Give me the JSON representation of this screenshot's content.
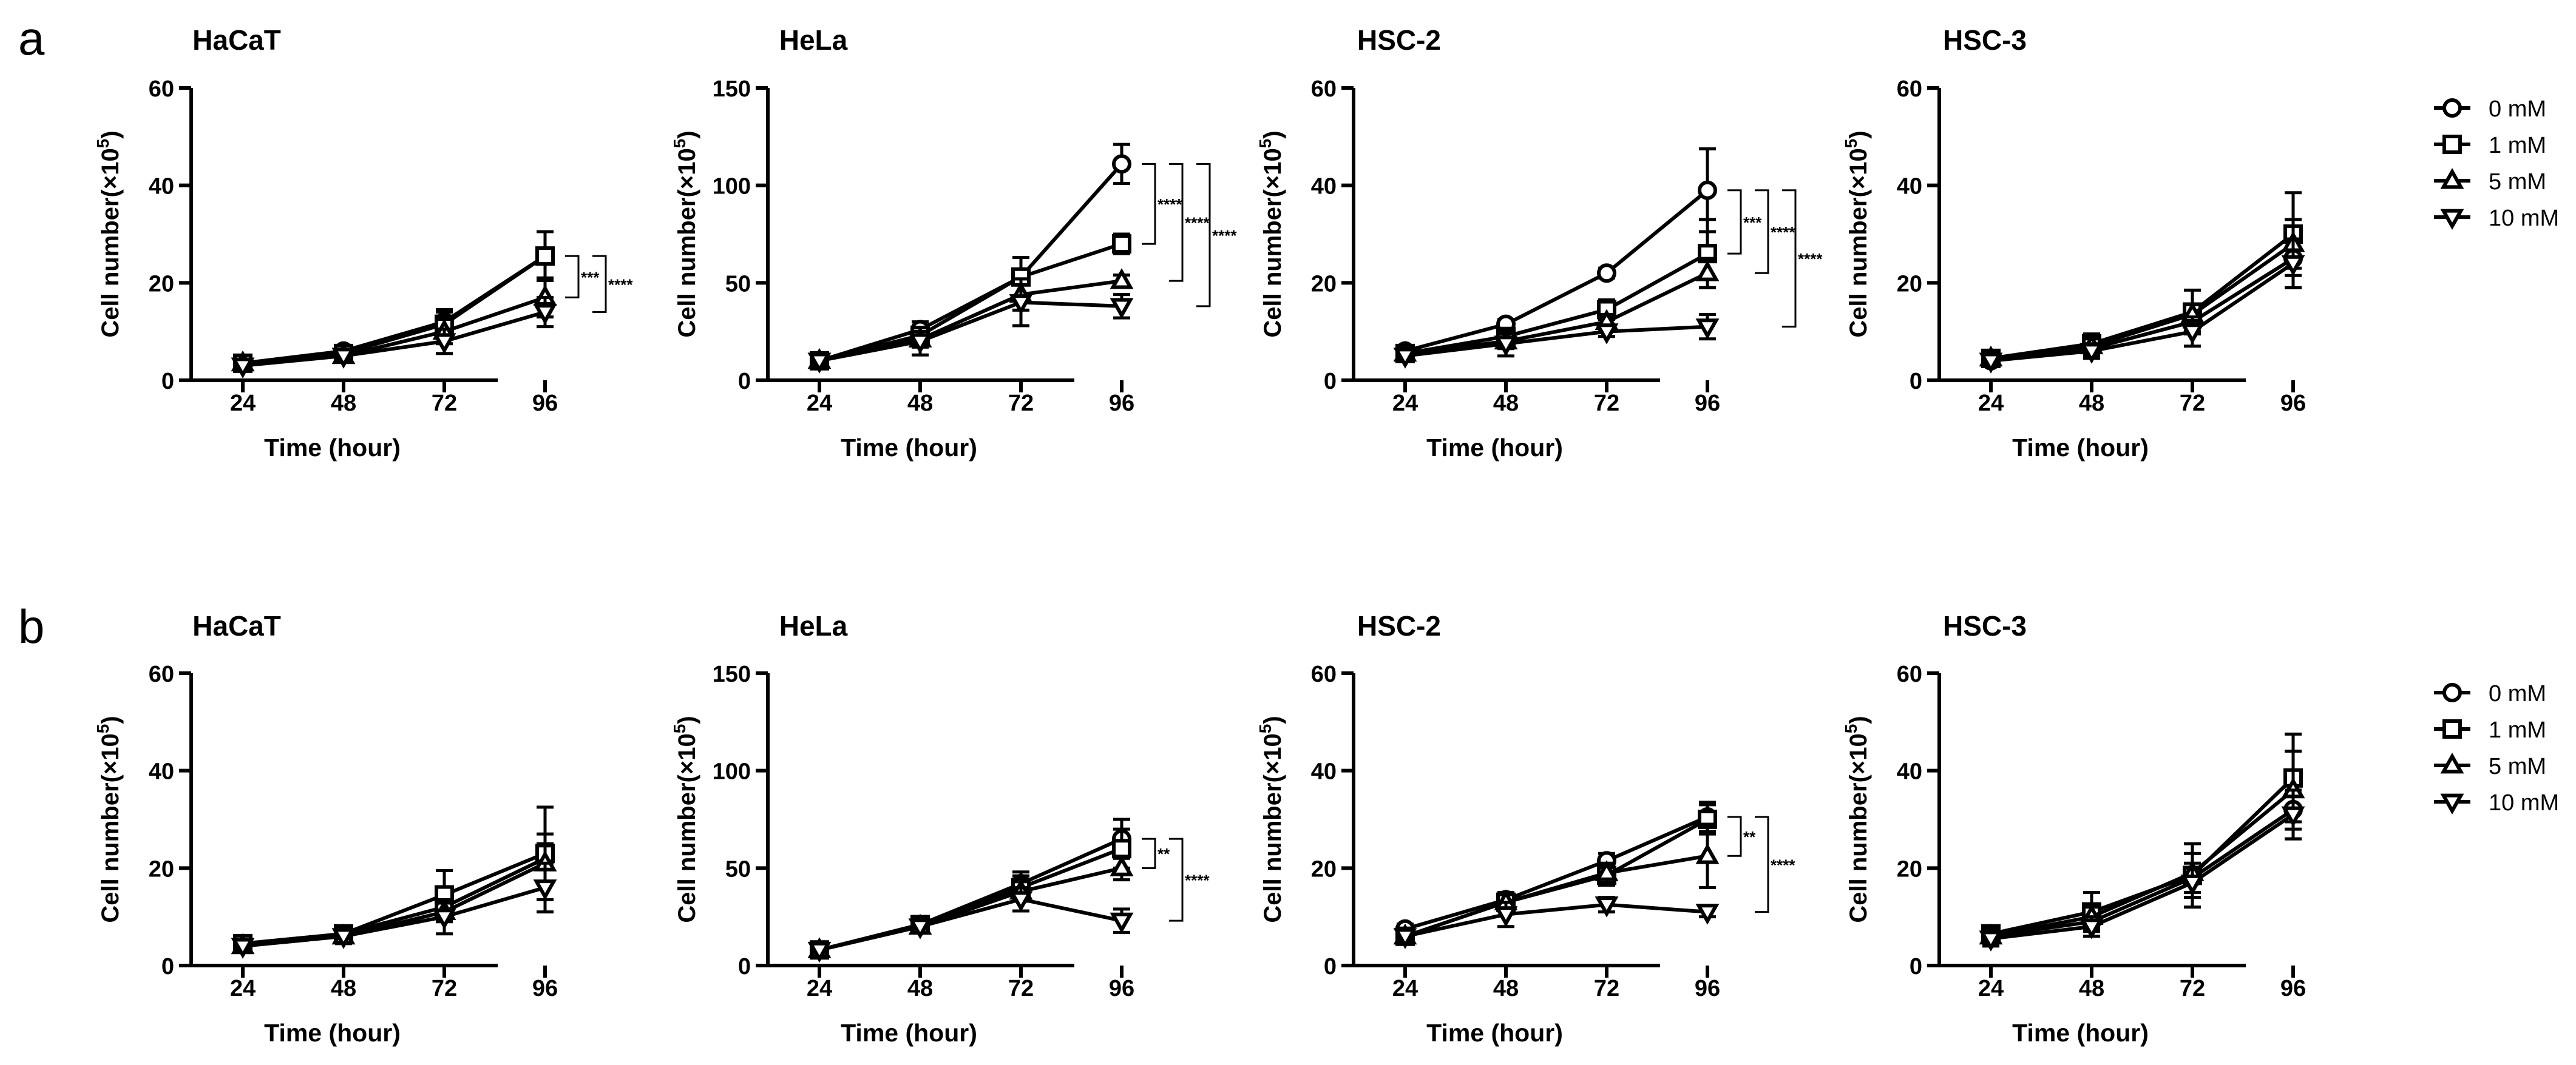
{
  "figure": {
    "legend": {
      "a": [
        "0 mM",
        "1 mM",
        "5 mM",
        "10 mM"
      ],
      "b": [
        "0 mM",
        "1 mM",
        "5 mM",
        "10 mM"
      ]
    },
    "panel_labels": [
      "a",
      "b"
    ],
    "styles": {
      "line_color": "#000000",
      "background": "#ffffff"
    }
  },
  "chart_data": [
    {
      "panel": "a",
      "type": "line",
      "title": "HaCaT",
      "xlabel": "Time (hour)",
      "ylabel": "Cell number(×10",
      "ylabel_superscript": "5",
      "ylabel_close": ")",
      "categories": [
        "24",
        "48",
        "72",
        "96"
      ],
      "ylim": [
        0,
        60
      ],
      "yticks": [
        "0",
        "20",
        "40",
        "60"
      ],
      "series": [
        {
          "name": "0 mM",
          "marker": "circle",
          "values": [
            3.5,
            6,
            12,
            25.5
          ],
          "errors": [
            0.5,
            1,
            2.5,
            5
          ]
        },
        {
          "name": "1 mM",
          "marker": "square",
          "values": [
            3.5,
            5.5,
            11.5,
            25.5
          ],
          "errors": [
            0.5,
            1,
            2.5,
            5
          ]
        },
        {
          "name": "5 mM",
          "marker": "triangle-up",
          "values": [
            3.5,
            5,
            10,
            17
          ],
          "errors": [
            0.5,
            1,
            2.5,
            4
          ]
        },
        {
          "name": "10 mM",
          "marker": "triangle-down",
          "values": [
            3,
            5,
            8,
            14
          ],
          "errors": [
            0.5,
            1,
            2.5,
            3
          ]
        }
      ],
      "significance": [
        {
          "label": "***",
          "from": 25.5,
          "to": 17
        },
        {
          "label": "****",
          "from": 25.5,
          "to": 14
        }
      ]
    },
    {
      "panel": "a",
      "type": "line",
      "title": "HeLa",
      "xlabel": "Time (hour)",
      "ylabel": "Cell number(×10",
      "ylabel_superscript": "5",
      "ylabel_close": ")",
      "categories": [
        "24",
        "48",
        "72",
        "96"
      ],
      "ylim": [
        0,
        150
      ],
      "yticks": [
        "0",
        "50",
        "100",
        "150"
      ],
      "series": [
        {
          "name": "0 mM",
          "marker": "circle",
          "values": [
            10,
            26,
            53,
            111
          ],
          "errors": [
            2,
            4,
            10,
            10
          ]
        },
        {
          "name": "1 mM",
          "marker": "square",
          "values": [
            10,
            23,
            53,
            70
          ],
          "errors": [
            2,
            4,
            10,
            5
          ]
        },
        {
          "name": "5 mM",
          "marker": "triangle-up",
          "values": [
            10,
            21,
            44,
            51
          ],
          "errors": [
            2,
            4,
            8,
            3
          ]
        },
        {
          "name": "10 mM",
          "marker": "triangle-down",
          "values": [
            10,
            20,
            40,
            38
          ],
          "errors": [
            2,
            7,
            12,
            6
          ]
        }
      ],
      "significance": [
        {
          "label": "****",
          "from": 111,
          "to": 70
        },
        {
          "label": "****",
          "from": 111,
          "to": 51
        },
        {
          "label": "****",
          "from": 111,
          "to": 38
        }
      ]
    },
    {
      "panel": "a",
      "type": "line",
      "title": "HSC-2",
      "xlabel": "Time (hour)",
      "ylabel": "Cell number(×10",
      "ylabel_superscript": "5",
      "ylabel_close": ")",
      "categories": [
        "24",
        "48",
        "72",
        "96"
      ],
      "ylim": [
        0,
        60
      ],
      "yticks": [
        "0",
        "20",
        "40",
        "60"
      ],
      "series": [
        {
          "name": "0 mM",
          "marker": "circle",
          "values": [
            6,
            11.5,
            22,
            39
          ],
          "errors": [
            1,
            1,
            1,
            8.5
          ]
        },
        {
          "name": "1 mM",
          "marker": "square",
          "values": [
            5.5,
            9,
            14.5,
            26
          ],
          "errors": [
            1,
            1.5,
            2,
            7
          ]
        },
        {
          "name": "5 mM",
          "marker": "triangle-up",
          "values": [
            5.5,
            8,
            12,
            22
          ],
          "errors": [
            1,
            1.5,
            1.5,
            3
          ]
        },
        {
          "name": "10 mM",
          "marker": "triangle-down",
          "values": [
            5,
            7.5,
            10,
            11
          ],
          "errors": [
            1,
            2.5,
            1,
            2.5
          ]
        }
      ],
      "significance": [
        {
          "label": "***",
          "from": 39,
          "to": 26
        },
        {
          "label": "****",
          "from": 39,
          "to": 22
        },
        {
          "label": "****",
          "from": 39,
          "to": 11
        }
      ]
    },
    {
      "panel": "a",
      "type": "line",
      "title": "HSC-3",
      "xlabel": "Time (hour)",
      "ylabel": "Cell number(×10",
      "ylabel_superscript": "5",
      "ylabel_close": ")",
      "categories": [
        "24",
        "48",
        "72",
        "96"
      ],
      "ylim": [
        0,
        60
      ],
      "yticks": [
        "0",
        "20",
        "40",
        "60"
      ],
      "series": [
        {
          "name": "0 mM",
          "marker": "circle",
          "values": [
            4,
            6.5,
            12,
            25
          ],
          "errors": [
            1,
            1.5,
            2,
            6
          ]
        },
        {
          "name": "1 mM",
          "marker": "square",
          "values": [
            4.5,
            7.5,
            14,
            30
          ],
          "errors": [
            1,
            2,
            4.5,
            8.5
          ]
        },
        {
          "name": "5 mM",
          "marker": "triangle-up",
          "values": [
            4.5,
            7,
            13.5,
            28
          ],
          "errors": [
            1,
            1.5,
            2,
            5
          ]
        },
        {
          "name": "10 mM",
          "marker": "triangle-down",
          "values": [
            4,
            6,
            10,
            24
          ],
          "errors": [
            1,
            1.5,
            3,
            5
          ]
        }
      ],
      "significance": []
    },
    {
      "panel": "b",
      "type": "line",
      "title": "HaCaT",
      "xlabel": "Time (hour)",
      "ylabel": "Cell number(×10",
      "ylabel_superscript": "5",
      "ylabel_close": ")",
      "categories": [
        "24",
        "48",
        "72",
        "96"
      ],
      "ylim": [
        0,
        60
      ],
      "yticks": [
        "0",
        "20",
        "40",
        "60"
      ],
      "series": [
        {
          "name": "0 mM",
          "marker": "circle",
          "values": [
            4.5,
            6.5,
            12,
            22
          ],
          "errors": [
            1,
            1,
            2.5,
            5
          ]
        },
        {
          "name": "1 mM",
          "marker": "square",
          "values": [
            4.5,
            6.5,
            14.5,
            23
          ],
          "errors": [
            1,
            1.5,
            5,
            9.5
          ]
        },
        {
          "name": "5 mM",
          "marker": "triangle-up",
          "values": [
            4,
            6,
            11,
            21
          ],
          "errors": [
            1,
            1,
            2,
            4
          ]
        },
        {
          "name": "10 mM",
          "marker": "triangle-down",
          "values": [
            4,
            6,
            10,
            16
          ],
          "errors": [
            1,
            1.5,
            3.5,
            5
          ]
        }
      ],
      "significance": []
    },
    {
      "panel": "b",
      "type": "line",
      "title": "HeLa",
      "xlabel": "Time (hour)",
      "ylabel": "Cell number(×10",
      "ylabel_superscript": "5",
      "ylabel_close": ")",
      "categories": [
        "24",
        "48",
        "72",
        "96"
      ],
      "ylim": [
        0,
        150
      ],
      "yticks": [
        "0",
        "50",
        "100",
        "150"
      ],
      "series": [
        {
          "name": "0 mM",
          "marker": "circle",
          "values": [
            8,
            21,
            42,
            65
          ],
          "errors": [
            1.5,
            3,
            6,
            10
          ]
        },
        {
          "name": "1 mM",
          "marker": "square",
          "values": [
            8,
            21,
            40,
            60
          ],
          "errors": [
            1.5,
            3,
            6,
            10
          ]
        },
        {
          "name": "5 mM",
          "marker": "triangle-up",
          "values": [
            8,
            20,
            38,
            50
          ],
          "errors": [
            1.5,
            3,
            5,
            6
          ]
        },
        {
          "name": "10 mM",
          "marker": "triangle-down",
          "values": [
            8,
            20,
            34,
            23
          ],
          "errors": [
            1.5,
            3,
            6,
            6
          ]
        }
      ],
      "significance": [
        {
          "label": "**",
          "from": 65,
          "to": 50
        },
        {
          "label": "****",
          "from": 65,
          "to": 23
        }
      ]
    },
    {
      "panel": "b",
      "type": "line",
      "title": "HSC-2",
      "xlabel": "Time (hour)",
      "ylabel": "Cell number(×10",
      "ylabel_superscript": "5",
      "ylabel_close": ")",
      "categories": [
        "24",
        "48",
        "72",
        "96"
      ],
      "ylim": [
        0,
        60
      ],
      "yticks": [
        "0",
        "20",
        "40",
        "60"
      ],
      "series": [
        {
          "name": "0 mM",
          "marker": "circle",
          "values": [
            7.5,
            13.5,
            21.5,
            30.5
          ],
          "errors": [
            1,
            1.5,
            1.5,
            3
          ]
        },
        {
          "name": "1 mM",
          "marker": "square",
          "values": [
            6,
            13,
            18.5,
            30
          ],
          "errors": [
            1,
            1.5,
            2,
            3
          ]
        },
        {
          "name": "5 mM",
          "marker": "triangle-up",
          "values": [
            6,
            13,
            19,
            22.5
          ],
          "errors": [
            1,
            1.5,
            2,
            6.5
          ]
        },
        {
          "name": "10 mM",
          "marker": "triangle-down",
          "values": [
            6,
            10.5,
            12.5,
            11
          ],
          "errors": [
            1,
            2.5,
            1.5,
            1
          ]
        }
      ],
      "significance": [
        {
          "label": "**",
          "from": 30.5,
          "to": 22.5
        },
        {
          "label": "****",
          "from": 30.5,
          "to": 11
        }
      ]
    },
    {
      "panel": "b",
      "type": "line",
      "title": "HSC-3",
      "xlabel": "Time (hour)",
      "ylabel": "Cell number(×10",
      "ylabel_superscript": "5",
      "ylabel_close": ")",
      "categories": [
        "24",
        "48",
        "72",
        "96"
      ],
      "ylim": [
        0,
        60
      ],
      "yticks": [
        "0",
        "20",
        "40",
        "60"
      ],
      "series": [
        {
          "name": "0 mM",
          "marker": "circle",
          "values": [
            6,
            9,
            18,
            32
          ],
          "errors": [
            1.5,
            1.5,
            3,
            6
          ]
        },
        {
          "name": "1 mM",
          "marker": "square",
          "values": [
            6.5,
            11,
            18.5,
            38.5
          ],
          "errors": [
            1.5,
            4,
            6.5,
            9
          ]
        },
        {
          "name": "5 mM",
          "marker": "triangle-up",
          "values": [
            6,
            10,
            19,
            36
          ],
          "errors": [
            1.5,
            2,
            4,
            8
          ]
        },
        {
          "name": "10 mM",
          "marker": "triangle-down",
          "values": [
            5.5,
            8,
            17,
            31
          ],
          "errors": [
            1.5,
            2,
            3,
            5
          ]
        }
      ],
      "significance": []
    }
  ]
}
